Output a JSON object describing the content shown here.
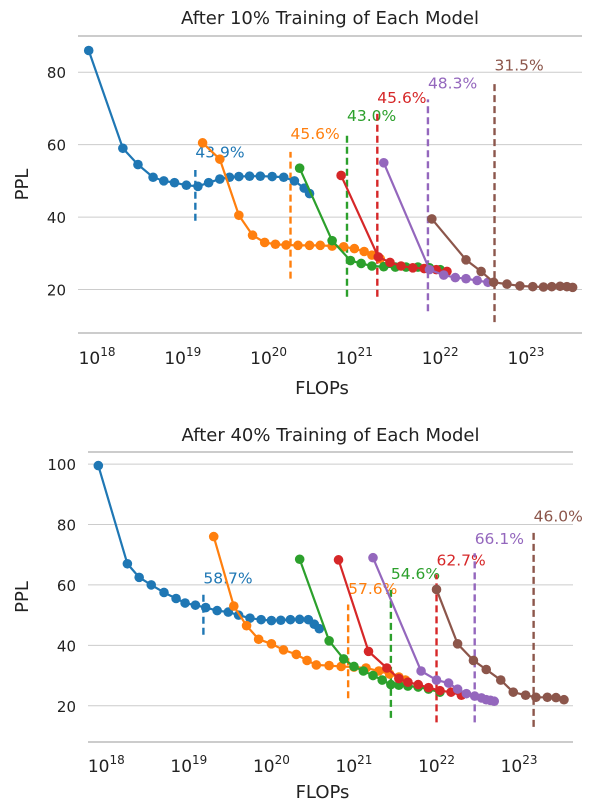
{
  "chart_data": [
    {
      "type": "line",
      "title": "After 10% Training of Each Model",
      "xlabel": "FLOPs",
      "ylabel": "PPL",
      "xscale": "log",
      "xlim": [
        6e+17,
        4.5e+23
      ],
      "ylim": [
        8,
        90
      ],
      "yticks": [
        20,
        40,
        60,
        80
      ],
      "xtick_labels": [
        "10^18",
        "10^19",
        "10^20",
        "10^21",
        "10^22",
        "10^23"
      ],
      "grid": "horizontal",
      "series": [
        {
          "color": "#1f77b4",
          "points": [
            [
              8e+17,
              86
            ],
            [
              2e+18,
              59
            ],
            [
              3e+18,
              54.5
            ],
            [
              4.5e+18,
              51
            ],
            [
              6e+18,
              50
            ],
            [
              8e+18,
              49.5
            ],
            [
              1.1e+19,
              48.8
            ],
            [
              1.5e+19,
              48.5
            ],
            [
              2e+19,
              49.5
            ],
            [
              2.7e+19,
              50.5
            ],
            [
              3.5e+19,
              51
            ],
            [
              4.5e+19,
              51.2
            ],
            [
              6e+19,
              51.3
            ],
            [
              8e+19,
              51.3
            ],
            [
              1.1e+20,
              51.2
            ],
            [
              1.5e+20,
              51
            ],
            [
              2e+20,
              50
            ],
            [
              2.6e+20,
              48
            ],
            [
              3e+20,
              46.5
            ]
          ]
        },
        {
          "color": "#ff7f0e",
          "points": [
            [
              1.7e+19,
              60.5
            ],
            [
              2.7e+19,
              56
            ],
            [
              4.5e+19,
              40.5
            ],
            [
              6.5e+19,
              35
            ],
            [
              9e+19,
              33
            ],
            [
              1.2e+20,
              32.5
            ],
            [
              1.6e+20,
              32.3
            ],
            [
              2.2e+20,
              32.2
            ],
            [
              3e+20,
              32.2
            ],
            [
              4e+20,
              32.2
            ],
            [
              5.5e+20,
              32
            ],
            [
              7.5e+20,
              31.8
            ],
            [
              1e+21,
              31.3
            ],
            [
              1.3e+21,
              30.5
            ],
            [
              1.6e+21,
              29.5
            ],
            [
              2e+21,
              28.5
            ]
          ]
        },
        {
          "color": "#2ca02c",
          "points": [
            [
              2.3e+20,
              53.5
            ],
            [
              5.5e+20,
              33.5
            ],
            [
              9e+20,
              28
            ],
            [
              1.2e+21,
              27.2
            ],
            [
              1.6e+21,
              26.5
            ],
            [
              2.2e+21,
              26.3
            ],
            [
              3e+21,
              26.2
            ],
            [
              4e+21,
              26.2
            ],
            [
              5.5e+21,
              26.2
            ],
            [
              7.5e+21,
              26
            ],
            [
              1e+22,
              25.5
            ]
          ]
        },
        {
          "color": "#d62728",
          "points": [
            [
              7e+20,
              51.5
            ],
            [
              1.9e+21,
              29
            ],
            [
              2.6e+21,
              27.5
            ],
            [
              3.5e+21,
              26.5
            ],
            [
              4.8e+21,
              26
            ],
            [
              6.5e+21,
              25.8
            ],
            [
              9e+21,
              25.5
            ],
            [
              1.2e+22,
              25
            ]
          ]
        },
        {
          "color": "#9467bd",
          "points": [
            [
              2.2e+21,
              55
            ],
            [
              7.5e+21,
              25.5
            ],
            [
              1.1e+22,
              24
            ],
            [
              1.5e+22,
              23.3
            ],
            [
              2e+22,
              23
            ],
            [
              2.7e+22,
              22.5
            ],
            [
              3.6e+22,
              22
            ]
          ]
        },
        {
          "color": "#8c564b",
          "points": [
            [
              8e+21,
              39.5
            ],
            [
              2e+22,
              28.2
            ],
            [
              3e+22,
              25
            ],
            [
              4.2e+22,
              22
            ],
            [
              6e+22,
              21.5
            ],
            [
              8.5e+22,
              21
            ],
            [
              1.2e+23,
              20.8
            ],
            [
              1.6e+23,
              20.7
            ],
            [
              2e+23,
              20.8
            ],
            [
              2.5e+23,
              20.9
            ],
            [
              3e+23,
              20.8
            ],
            [
              3.5e+23,
              20.6
            ]
          ]
        }
      ],
      "markers": [
        {
          "color": "#1f77b4",
          "x": 1.4e+19,
          "y_range": [
            39,
            53
          ],
          "label": "43.9%",
          "label_y": 56.5
        },
        {
          "color": "#ff7f0e",
          "x": 1.8e+20,
          "y_range": [
            23,
            58
          ],
          "label": "45.6%",
          "label_y": 61.5
        },
        {
          "color": "#2ca02c",
          "x": 8.2e+20,
          "y_range": [
            18,
            63.5
          ],
          "label": "43.0%",
          "label_y": 66.5
        },
        {
          "color": "#d62728",
          "x": 1.85e+21,
          "y_range": [
            18,
            68.5
          ],
          "label": "45.6%",
          "label_y": 71.5
        },
        {
          "color": "#9467bd",
          "x": 7.2e+21,
          "y_range": [
            14,
            72.5
          ],
          "label": "48.3%",
          "label_y": 75.5
        },
        {
          "color": "#8c564b",
          "x": 4.3e+22,
          "y_range": [
            11,
            77.5
          ],
          "label": "31.5%",
          "label_y": 80.5
        }
      ]
    },
    {
      "type": "line",
      "title": "After 40% Training of Each Model",
      "xlabel": "FLOPs",
      "ylabel": "PPL",
      "xscale": "log",
      "xlim": [
        6e+17,
        4.5e+23
      ],
      "ylim": [
        8,
        104
      ],
      "yticks": [
        20,
        40,
        60,
        80,
        100
      ],
      "xtick_labels": [
        "10^18",
        "10^19",
        "10^20",
        "10^21",
        "10^22",
        "10^23"
      ],
      "grid": "horizontal",
      "series": [
        {
          "color": "#1f77b4",
          "points": [
            [
              8e+17,
              99.5
            ],
            [
              1.8e+18,
              67
            ],
            [
              2.5e+18,
              62.5
            ],
            [
              3.5e+18,
              60
            ],
            [
              5e+18,
              57.5
            ],
            [
              7e+18,
              55.5
            ],
            [
              9e+18,
              54
            ],
            [
              1.2e+19,
              53.3
            ],
            [
              1.6e+19,
              52.5
            ],
            [
              2.2e+19,
              51.5
            ],
            [
              3e+19,
              51
            ],
            [
              4e+19,
              50
            ],
            [
              5.5e+19,
              49
            ],
            [
              7.5e+19,
              48.5
            ],
            [
              1e+20,
              48.2
            ],
            [
              1.3e+20,
              48.3
            ],
            [
              1.7e+20,
              48.5
            ],
            [
              2.2e+20,
              48.6
            ],
            [
              2.8e+20,
              48.5
            ],
            [
              3.3e+20,
              47
            ],
            [
              3.8e+20,
              45.5
            ]
          ]
        },
        {
          "color": "#ff7f0e",
          "points": [
            [
              2e+19,
              76
            ],
            [
              3.5e+19,
              53
            ],
            [
              5e+19,
              46.5
            ],
            [
              7e+19,
              42
            ],
            [
              1e+20,
              40.5
            ],
            [
              1.4e+20,
              38.5
            ],
            [
              2e+20,
              37
            ],
            [
              2.7e+20,
              35
            ],
            [
              3.5e+20,
              33.5
            ],
            [
              5e+20,
              33.3
            ],
            [
              7e+20,
              33
            ],
            [
              1e+21,
              32.8
            ],
            [
              1.4e+21,
              32.5
            ],
            [
              2e+21,
              31.5
            ],
            [
              2.7e+21,
              30.5
            ],
            [
              3.5e+21,
              29.5
            ],
            [
              4.2e+21,
              28.5
            ]
          ]
        },
        {
          "color": "#2ca02c",
          "points": [
            [
              2.2e+20,
              68.5
            ],
            [
              5e+20,
              41.5
            ],
            [
              7.5e+20,
              35.5
            ],
            [
              1e+21,
              33
            ],
            [
              1.3e+21,
              31.5
            ],
            [
              1.7e+21,
              30
            ],
            [
              2.2e+21,
              28.5
            ],
            [
              2.8e+21,
              27
            ],
            [
              3.5e+21,
              26.8
            ],
            [
              4.5e+21,
              26.5
            ],
            [
              6e+21,
              26.2
            ],
            [
              8e+21,
              25.5
            ],
            [
              1.1e+22,
              24.5
            ]
          ]
        },
        {
          "color": "#d62728",
          "points": [
            [
              6.5e+20,
              68.3
            ],
            [
              1.5e+21,
              38
            ],
            [
              2.5e+21,
              32.5
            ],
            [
              3.5e+21,
              29
            ],
            [
              4.5e+21,
              27.8
            ],
            [
              6e+21,
              27
            ],
            [
              8e+21,
              26
            ],
            [
              1.1e+22,
              25
            ],
            [
              1.5e+22,
              24.5
            ],
            [
              2e+22,
              23.5
            ]
          ]
        },
        {
          "color": "#9467bd",
          "points": [
            [
              1.7e+21,
              69
            ],
            [
              6.5e+21,
              31.5
            ],
            [
              1e+22,
              28.5
            ],
            [
              1.4e+22,
              27.5
            ],
            [
              1.8e+22,
              25.5
            ],
            [
              2.3e+22,
              24
            ],
            [
              2.9e+22,
              23.2
            ],
            [
              3.5e+22,
              22.6
            ],
            [
              4e+22,
              22
            ],
            [
              4.5e+22,
              21.8
            ],
            [
              5e+22,
              21.5
            ]
          ]
        },
        {
          "color": "#8c564b",
          "points": [
            [
              1e+22,
              58.5
            ],
            [
              1.8e+22,
              40.5
            ],
            [
              2.8e+22,
              35
            ],
            [
              4e+22,
              32
            ],
            [
              6e+22,
              28.5
            ],
            [
              8.5e+22,
              24.5
            ],
            [
              1.2e+23,
              23.5
            ],
            [
              1.6e+23,
              22.8
            ],
            [
              2.2e+23,
              22.8
            ],
            [
              2.8e+23,
              22.7
            ],
            [
              3.5e+23,
              22
            ]
          ]
        }
      ],
      "markers": [
        {
          "color": "#1f77b4",
          "x": 1.5e+19,
          "y_range": [
            43.5,
            57
          ],
          "label": "58.7%",
          "label_y": 60.5
        },
        {
          "color": "#ff7f0e",
          "x": 8.5e+20,
          "y_range": [
            22.5,
            53.5
          ],
          "label": "57.6%",
          "label_y": 57
        },
        {
          "color": "#2ca02c",
          "x": 2.8e+21,
          "y_range": [
            16,
            58.5
          ],
          "label": "54.6%",
          "label_y": 62
        },
        {
          "color": "#d62728",
          "x": 1e+22,
          "y_range": [
            14.5,
            63.5
          ],
          "label": "62.7%",
          "label_y": 66.5
        },
        {
          "color": "#9467bd",
          "x": 2.9e+22,
          "y_range": [
            14.5,
            70.5
          ],
          "label": "66.1%",
          "label_y": 73.5
        },
        {
          "color": "#8c564b",
          "x": 1.5e+23,
          "y_range": [
            13,
            78
          ],
          "label": "46.0%",
          "label_y": 81
        }
      ]
    }
  ]
}
